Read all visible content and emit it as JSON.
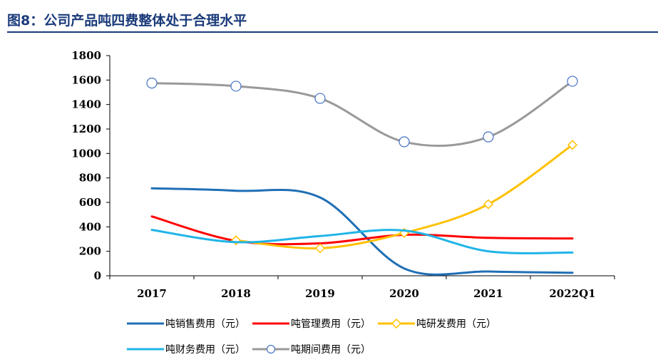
{
  "title": "图8：公司产品吨四费整体处于合理水平",
  "colors": {
    "title": "#1a3a7a",
    "sales": "#1f6fb5",
    "mgmt": "#ff0000",
    "rnd": "#ffc000",
    "fin": "#1fb4e8",
    "period": "#999999",
    "axis": "#000000"
  },
  "chart_data": {
    "type": "line",
    "title": "",
    "xlabel": "",
    "ylabel": "",
    "categories": [
      "2017",
      "2018",
      "2019",
      "2020",
      "2021",
      "2022Q1"
    ],
    "ylim": [
      0,
      1800
    ],
    "yticks": [
      0,
      200,
      400,
      600,
      800,
      1000,
      1200,
      1400,
      1600,
      1800
    ],
    "grid": false,
    "legend": "bottom",
    "series": [
      {
        "name": "吨销售费用（元）",
        "values": [
          715,
          695,
          640,
          60,
          35,
          25
        ],
        "color": "#1f6fb5",
        "marker": "none"
      },
      {
        "name": "吨管理费用（元）",
        "values": [
          485,
          285,
          265,
          335,
          310,
          305
        ],
        "color": "#ff0000",
        "marker": "none"
      },
      {
        "name": "吨研发费用（元）",
        "values": [
          null,
          290,
          225,
          350,
          585,
          1070
        ],
        "color": "#ffc000",
        "marker": "diamond"
      },
      {
        "name": "吨财务费用（元）",
        "values": [
          375,
          275,
          325,
          370,
          200,
          190
        ],
        "color": "#1fb4e8",
        "marker": "none"
      },
      {
        "name": "吨期间费用（元）",
        "values": [
          1575,
          1550,
          1450,
          1095,
          1135,
          1590
        ],
        "color": "#999999",
        "marker": "circle"
      }
    ]
  }
}
